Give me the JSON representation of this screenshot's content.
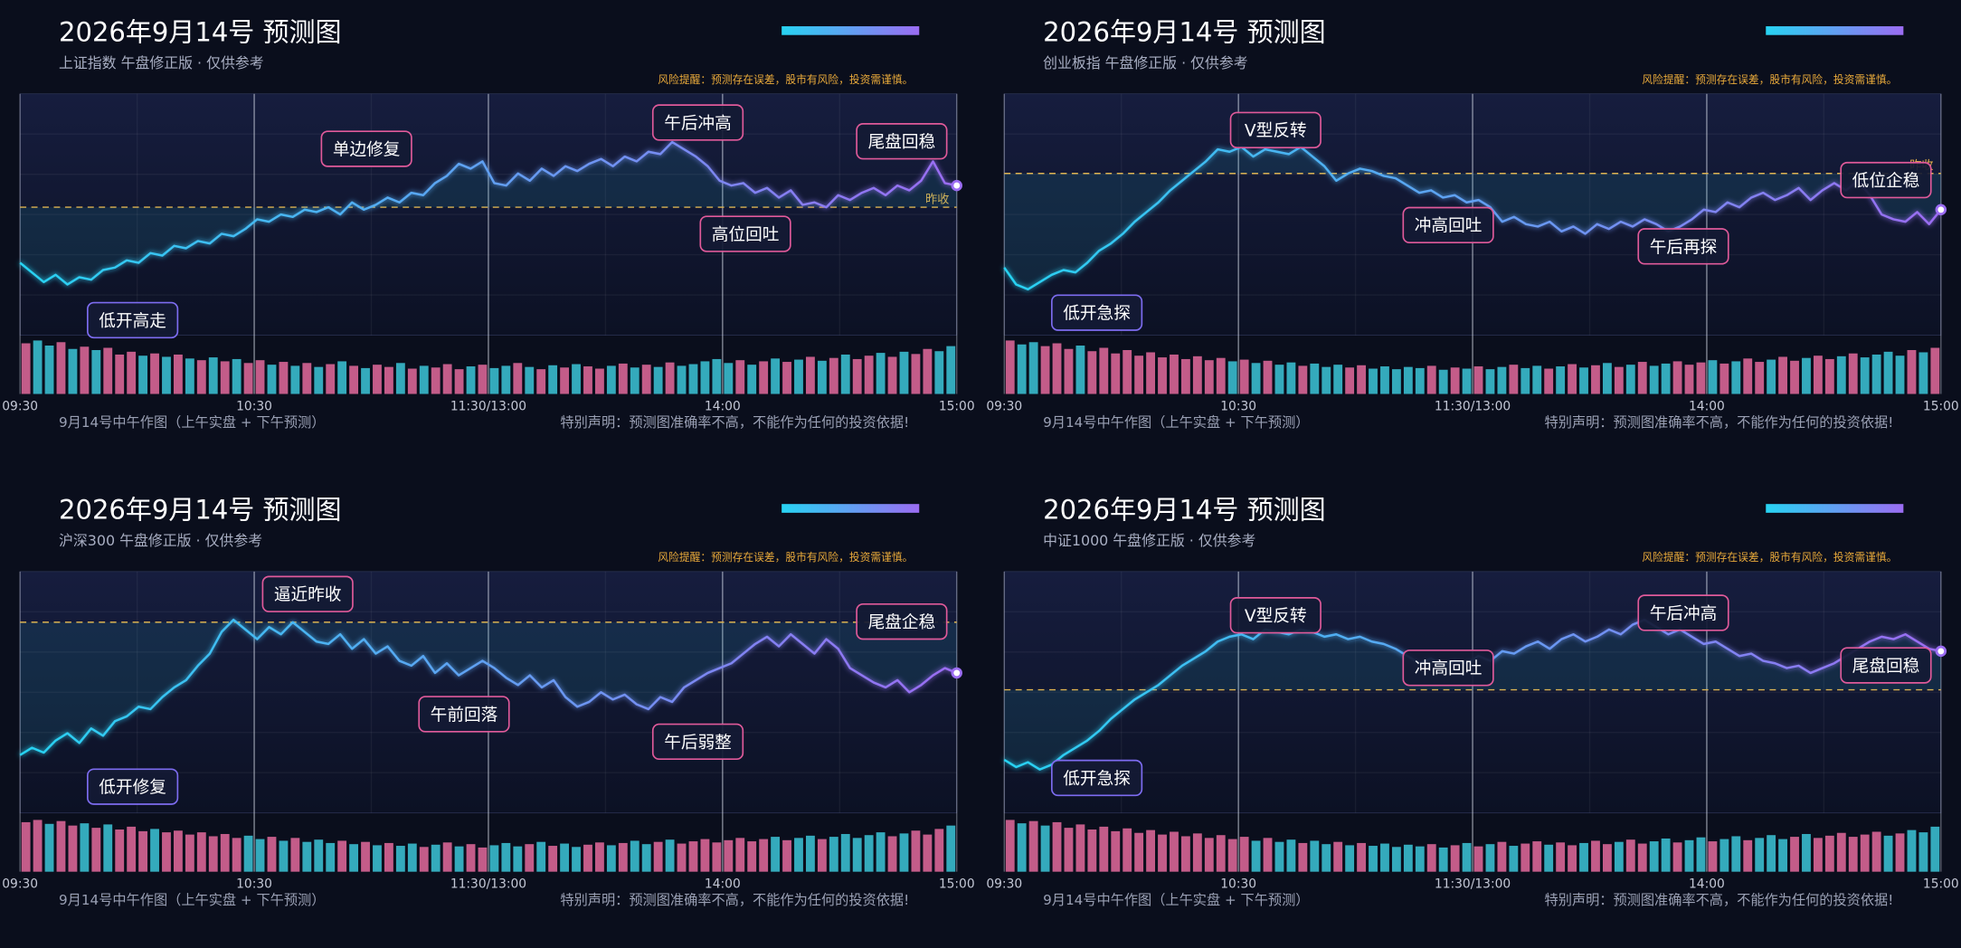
{
  "chart_data": [
    {
      "type": "line",
      "title": "2026年9月14号 预测图",
      "subtitle": "上证指数 午盘修正版 · 仅供参考",
      "risk_note": "风险提醒：预测存在误差，股市有风险，投资需谨慎。",
      "footer_left": "9月14号中午作图（上午实盘 + 下午预测）",
      "footer_right": "特别声明：预测图准确率不高，不能作为任何的投资依据!",
      "xticks": [
        "09:30",
        "10:30",
        "11:30/13:00",
        "14:00",
        "15:00"
      ],
      "ylim": [
        0,
        100
      ],
      "prev_close": 53,
      "prev_close_label": "昨收",
      "line_colors": [
        "#27d3f2",
        "#9b6cf2"
      ],
      "up_color": "#e46a9c",
      "down_color": "#3cc6d8",
      "prev_close_color": "#e8b34a",
      "values": [
        30,
        26,
        22,
        25,
        21,
        24,
        23,
        27,
        28,
        31,
        30,
        34,
        33,
        37,
        36,
        39,
        38,
        42,
        41,
        44,
        48,
        47,
        50,
        49,
        52,
        51,
        53,
        50,
        55,
        52,
        54,
        57,
        55,
        59,
        58,
        63,
        66,
        71,
        69,
        72,
        63,
        62,
        67,
        64,
        69,
        66,
        70,
        68,
        71,
        73,
        70,
        74,
        72,
        76,
        75,
        80,
        77,
        74,
        70,
        64,
        62,
        63,
        59,
        61,
        57,
        60,
        54,
        55,
        53,
        58,
        56,
        59,
        61,
        58,
        62,
        60,
        64,
        72,
        63,
        62
      ],
      "volume": {
        "ylim": [
          0,
          100
        ],
        "values": [
          90,
          95,
          86,
          92,
          80,
          84,
          78,
          82,
          70,
          75,
          68,
          72,
          66,
          70,
          63,
          60,
          65,
          58,
          62,
          55,
          60,
          52,
          57,
          50,
          55,
          48,
          53,
          58,
          50,
          46,
          52,
          48,
          55,
          45,
          50,
          47,
          53,
          44,
          49,
          52,
          46,
          50,
          55,
          48,
          44,
          51,
          47,
          53,
          49,
          45,
          50,
          54,
          47,
          52,
          48,
          56,
          50,
          53,
          58,
          62,
          55,
          60,
          52,
          58,
          63,
          57,
          61,
          66,
          59,
          64,
          70,
          62,
          68,
          73,
          66,
          75,
          71,
          80,
          76,
          85
        ]
      },
      "annotations": [
        {
          "text": "低开高走",
          "color": "#7d6cf0"
        },
        {
          "text": "单边修复",
          "color": "#e05a9a"
        },
        {
          "text": "午后冲高",
          "color": "#e05a9a"
        },
        {
          "text": "高位回吐",
          "color": "#e05a9a"
        },
        {
          "text": "尾盘回稳",
          "color": "#e05a9a"
        }
      ]
    },
    {
      "type": "line",
      "title": "2026年9月14号 预测图",
      "subtitle": "创业板指 午盘修正版 · 仅供参考",
      "risk_note": "风险提醒：预测存在误差，股市有风险，投资需谨慎。",
      "footer_left": "9月14号中午作图（上午实盘 + 下午预测）",
      "footer_right": "特别声明：预测图准确率不高，不能作为任何的投资依据!",
      "xticks": [
        "09:30",
        "10:30",
        "11:30/13:00",
        "14:00",
        "15:00"
      ],
      "ylim": [
        0,
        100
      ],
      "prev_close": 67,
      "prev_close_label": "昨收",
      "line_colors": [
        "#27d3f2",
        "#9b6cf2"
      ],
      "up_color": "#e46a9c",
      "down_color": "#3cc6d8",
      "prev_close_color": "#e8b34a",
      "values": [
        28,
        21,
        19,
        22,
        25,
        27,
        26,
        30,
        35,
        38,
        42,
        47,
        51,
        55,
        60,
        64,
        68,
        72,
        77,
        76,
        78,
        74,
        77,
        76,
        75,
        78,
        74,
        70,
        64,
        67,
        69,
        68,
        66,
        65,
        62,
        59,
        60,
        57,
        58,
        55,
        56,
        53,
        47,
        49,
        46,
        45,
        47,
        43,
        45,
        42,
        46,
        44,
        47,
        45,
        48,
        46,
        43,
        45,
        48,
        52,
        51,
        55,
        53,
        57,
        59,
        56,
        58,
        61,
        56,
        60,
        63,
        60,
        64,
        58,
        50,
        48,
        47,
        51,
        46,
        52
      ],
      "volume": {
        "ylim": [
          0,
          100
        ],
        "values": [
          95,
          88,
          92,
          85,
          90,
          80,
          86,
          76,
          82,
          72,
          78,
          68,
          74,
          65,
          70,
          62,
          67,
          60,
          64,
          58,
          61,
          55,
          59,
          52,
          56,
          50,
          54,
          48,
          52,
          47,
          51,
          45,
          49,
          44,
          48,
          46,
          50,
          43,
          47,
          45,
          49,
          44,
          48,
          52,
          46,
          50,
          45,
          49,
          53,
          47,
          51,
          55,
          48,
          52,
          57,
          50,
          54,
          58,
          52,
          56,
          60,
          54,
          58,
          63,
          57,
          61,
          66,
          59,
          64,
          68,
          62,
          67,
          72,
          65,
          70,
          75,
          68,
          78,
          74,
          82
        ]
      },
      "annotations": [
        {
          "text": "V型反转",
          "color": "#e05a9a"
        },
        {
          "text": "低开急探",
          "color": "#7d6cf0"
        },
        {
          "text": "冲高回吐",
          "color": "#e05a9a"
        },
        {
          "text": "午后再探",
          "color": "#e05a9a"
        },
        {
          "text": "低位企稳",
          "color": "#e05a9a"
        }
      ]
    },
    {
      "type": "line",
      "title": "2026年9月14号 预测图",
      "subtitle": "沪深300 午盘修正版 · 仅供参考",
      "risk_note": "风险提醒：预测存在误差，股市有风险，投资需谨慎。",
      "footer_left": "9月14号中午作图（上午实盘 + 下午预测）",
      "footer_right": "特别声明：预测图准确率不高，不能作为任何的投资依据!",
      "xticks": [
        "09:30",
        "10:30",
        "11:30/13:00",
        "14:00",
        "15:00"
      ],
      "ylim": [
        0,
        100
      ],
      "prev_close": 79,
      "line_colors": [
        "#27d3f2",
        "#9b6cf2"
      ],
      "up_color": "#e46a9c",
      "down_color": "#3cc6d8",
      "prev_close_color": "#e8b34a",
      "values": [
        24,
        27,
        25,
        30,
        33,
        29,
        35,
        32,
        38,
        40,
        44,
        43,
        48,
        52,
        55,
        61,
        66,
        75,
        80,
        76,
        72,
        77,
        74,
        79,
        75,
        71,
        70,
        74,
        68,
        72,
        66,
        69,
        63,
        61,
        65,
        58,
        62,
        57,
        60,
        63,
        60,
        56,
        53,
        57,
        52,
        55,
        48,
        44,
        46,
        50,
        47,
        49,
        45,
        43,
        48,
        46,
        52,
        55,
        58,
        60,
        62,
        66,
        70,
        73,
        69,
        74,
        70,
        66,
        72,
        68,
        60,
        57,
        54,
        52,
        55,
        50,
        53,
        57,
        60,
        58
      ],
      "volume": {
        "ylim": [
          0,
          100
        ],
        "values": [
          88,
          92,
          85,
          90,
          82,
          86,
          78,
          84,
          75,
          80,
          72,
          76,
          70,
          73,
          66,
          70,
          63,
          67,
          60,
          64,
          58,
          62,
          55,
          60,
          53,
          57,
          51,
          55,
          49,
          53,
          47,
          51,
          46,
          50,
          44,
          48,
          52,
          45,
          49,
          43,
          47,
          51,
          45,
          49,
          53,
          46,
          50,
          44,
          48,
          52,
          47,
          51,
          55,
          49,
          53,
          57,
          50,
          54,
          58,
          52,
          56,
          60,
          54,
          58,
          62,
          56,
          60,
          64,
          58,
          62,
          67,
          60,
          65,
          70,
          63,
          68,
          73,
          66,
          76,
          82
        ]
      },
      "annotations": [
        {
          "text": "逼近昨收",
          "color": "#e05a9a"
        },
        {
          "text": "低开修复",
          "color": "#7d6cf0"
        },
        {
          "text": "午前回落",
          "color": "#e05a9a"
        },
        {
          "text": "午后弱整",
          "color": "#e05a9a"
        },
        {
          "text": "尾盘企稳",
          "color": "#e05a9a"
        }
      ]
    },
    {
      "type": "line",
      "title": "2026年9月14号 预测图",
      "subtitle": "中证1000 午盘修正版 · 仅供参考",
      "risk_note": "风险提醒：预测存在误差，股市有风险，投资需谨慎。",
      "footer_left": "9月14号中午作图（上午实盘 + 下午预测）",
      "footer_right": "特别声明：预测图准确率不高，不能作为任何的投资依据!",
      "xticks": [
        "09:30",
        "10:30",
        "11:30/13:00",
        "14:00",
        "15:00"
      ],
      "ylim": [
        0,
        100
      ],
      "prev_close": 51,
      "line_colors": [
        "#27d3f2",
        "#9b6cf2"
      ],
      "up_color": "#e46a9c",
      "down_color": "#3cc6d8",
      "prev_close_color": "#e8b34a",
      "values": [
        22,
        19,
        21,
        18,
        20,
        24,
        27,
        30,
        34,
        39,
        43,
        47,
        50,
        53,
        57,
        61,
        64,
        67,
        71,
        73,
        74,
        72,
        76,
        75,
        74,
        76,
        75,
        73,
        74,
        72,
        73,
        71,
        70,
        68,
        65,
        62,
        64,
        61,
        63,
        62,
        65,
        63,
        67,
        66,
        69,
        71,
        68,
        72,
        74,
        71,
        73,
        76,
        74,
        78,
        80,
        77,
        74,
        76,
        73,
        70,
        71,
        68,
        65,
        66,
        63,
        62,
        60,
        61,
        58,
        60,
        62,
        65,
        68,
        71,
        73,
        72,
        74,
        71,
        68,
        67
      ],
      "volume": {
        "ylim": [
          0,
          100
        ],
        "values": [
          92,
          86,
          90,
          82,
          88,
          78,
          84,
          75,
          80,
          72,
          77,
          69,
          74,
          66,
          71,
          63,
          68,
          60,
          65,
          58,
          62,
          55,
          60,
          53,
          57,
          51,
          55,
          49,
          53,
          47,
          51,
          46,
          50,
          44,
          48,
          45,
          49,
          43,
          47,
          51,
          45,
          49,
          53,
          46,
          50,
          54,
          48,
          52,
          47,
          51,
          55,
          49,
          53,
          57,
          50,
          54,
          59,
          52,
          56,
          61,
          54,
          58,
          63,
          56,
          60,
          65,
          58,
          62,
          67,
          60,
          64,
          69,
          62,
          66,
          71,
          64,
          68,
          74,
          70,
          80
        ]
      },
      "annotations": [
        {
          "text": "V型反转",
          "color": "#e05a9a"
        },
        {
          "text": "低开急探",
          "color": "#7d6cf0"
        },
        {
          "text": "冲高回吐",
          "color": "#e05a9a"
        },
        {
          "text": "午后冲高",
          "color": "#e05a9a"
        },
        {
          "text": "尾盘回稳",
          "color": "#e05a9a"
        }
      ]
    }
  ]
}
